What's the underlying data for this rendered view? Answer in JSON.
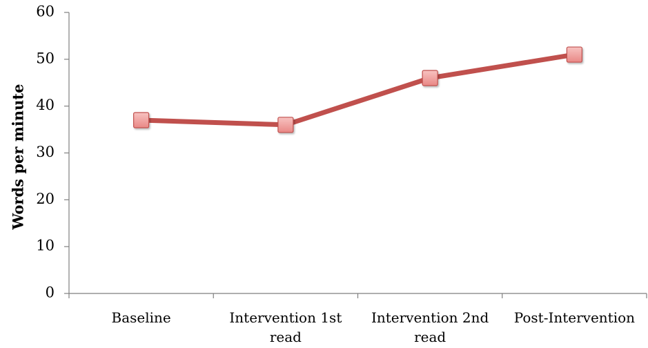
{
  "chart_data": {
    "type": "line",
    "title": "",
    "xlabel": "",
    "ylabel": "Words per minute",
    "ylim": [
      0,
      60
    ],
    "yticks": [
      "0",
      "10",
      "20",
      "30",
      "40",
      "50",
      "60"
    ],
    "categories": [
      [
        "Baseline"
      ],
      [
        "Intervention 1st",
        "read"
      ],
      [
        "Intervention 2nd",
        "read"
      ],
      [
        "Post-Intervention"
      ]
    ],
    "series": [
      {
        "values": [
          37,
          36,
          46,
          51
        ]
      }
    ],
    "grid": false,
    "legend": "none",
    "colors": {
      "line": "#c0504d",
      "marker_fill": "#f4a19f",
      "marker_stroke": "#c0504d"
    }
  }
}
